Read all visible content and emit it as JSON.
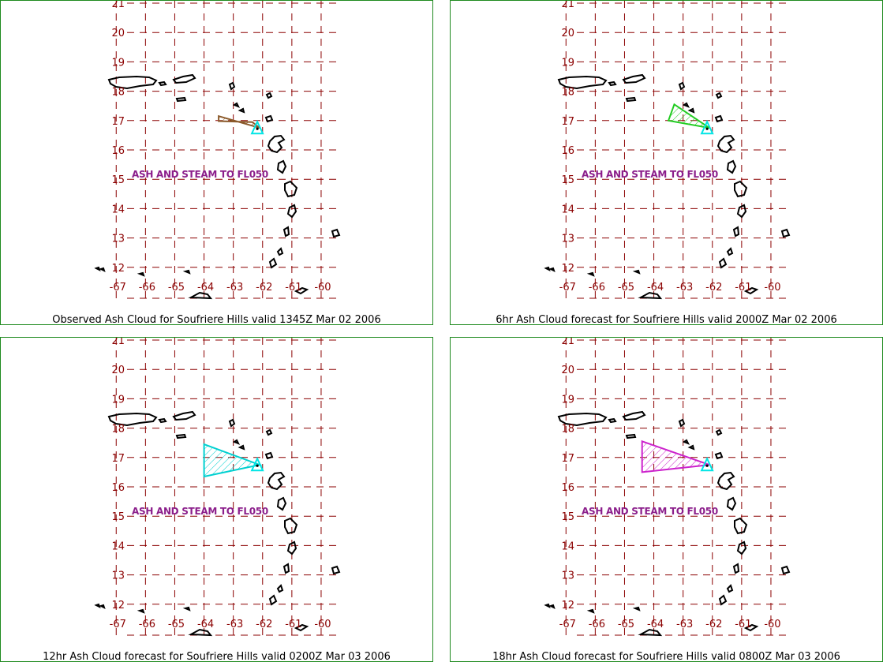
{
  "note": "ASH AND STEAM TO FL050",
  "lon_ticks": [
    "-67",
    "-66",
    "-65",
    "-64",
    "-63",
    "-62",
    "-61",
    "-60"
  ],
  "lat_ticks": [
    "21",
    "20",
    "19",
    "18",
    "17",
    "16",
    "15",
    "14",
    "13",
    "12"
  ],
  "colors": {
    "grid": "#8b0000",
    "border": "#1f8a1f",
    "vent": "#00e5e5",
    "note": "#8b1e8b"
  },
  "volcano": {
    "name": "Soufriere Hills",
    "lon": -62.18,
    "lat": 16.72
  },
  "panels": [
    {
      "caption": "Observed Ash Cloud for Soufriere  Hills valid 1345Z Mar 02 2006",
      "cloud_color": "#8b5a2b",
      "cloud_polygon": [
        [
          -63.5,
          17.15
        ],
        [
          -62.1,
          16.75
        ],
        [
          -62.35,
          16.95
        ],
        [
          -63.5,
          16.98
        ]
      ]
    },
    {
      "caption": "6hr Ash Cloud forecast for Soufriere  Hills valid 2000Z Mar 02 2006",
      "cloud_color": "#22cc22",
      "cloud_polygon": [
        [
          -63.3,
          17.55
        ],
        [
          -62.1,
          16.75
        ],
        [
          -63.5,
          17.0
        ]
      ]
    },
    {
      "caption": "12hr Ash Cloud forecast for Soufriere  Hills valid 0200Z Mar 03 2006",
      "cloud_color": "#00d0d0",
      "cloud_polygon": [
        [
          -64.0,
          17.45
        ],
        [
          -62.1,
          16.75
        ],
        [
          -64.0,
          16.35
        ]
      ]
    },
    {
      "caption": "18hr Ash Cloud forecast for Soufriere  Hills valid 0800Z Mar 03 2006",
      "cloud_color": "#cc22cc",
      "cloud_polygon": [
        [
          -64.4,
          17.55
        ],
        [
          -62.1,
          16.75
        ],
        [
          -64.4,
          16.5
        ]
      ]
    }
  ]
}
